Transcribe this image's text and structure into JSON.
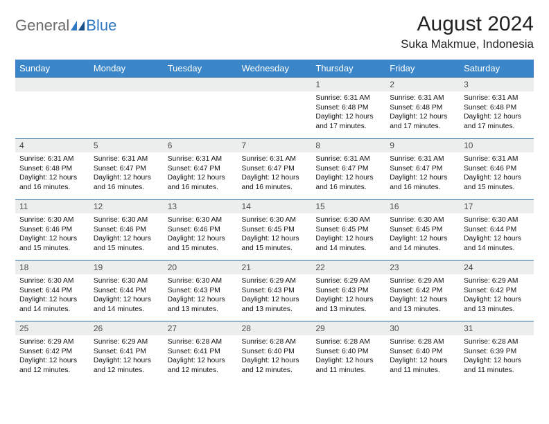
{
  "brand": {
    "part1": "General",
    "part2": "Blue"
  },
  "title": "August 2024",
  "location": "Suka Makmue, Indonesia",
  "colors": {
    "header_bg": "#3a86c8",
    "header_text": "#ffffff",
    "daynum_bg": "#eceded",
    "row_border": "#2d6aa3",
    "logo_gray": "#6a6a6a",
    "logo_blue": "#2f78c2"
  },
  "fonts": {
    "title_size_pt": 22,
    "location_size_pt": 13,
    "header_size_pt": 10,
    "body_size_pt": 8
  },
  "weekdays": [
    "Sunday",
    "Monday",
    "Tuesday",
    "Wednesday",
    "Thursday",
    "Friday",
    "Saturday"
  ],
  "weeks": [
    [
      null,
      null,
      null,
      null,
      {
        "n": "1",
        "sr": "6:31 AM",
        "ss": "6:48 PM",
        "dl": "12 hours and 17 minutes."
      },
      {
        "n": "2",
        "sr": "6:31 AM",
        "ss": "6:48 PM",
        "dl": "12 hours and 17 minutes."
      },
      {
        "n": "3",
        "sr": "6:31 AM",
        "ss": "6:48 PM",
        "dl": "12 hours and 17 minutes."
      }
    ],
    [
      {
        "n": "4",
        "sr": "6:31 AM",
        "ss": "6:48 PM",
        "dl": "12 hours and 16 minutes."
      },
      {
        "n": "5",
        "sr": "6:31 AM",
        "ss": "6:47 PM",
        "dl": "12 hours and 16 minutes."
      },
      {
        "n": "6",
        "sr": "6:31 AM",
        "ss": "6:47 PM",
        "dl": "12 hours and 16 minutes."
      },
      {
        "n": "7",
        "sr": "6:31 AM",
        "ss": "6:47 PM",
        "dl": "12 hours and 16 minutes."
      },
      {
        "n": "8",
        "sr": "6:31 AM",
        "ss": "6:47 PM",
        "dl": "12 hours and 16 minutes."
      },
      {
        "n": "9",
        "sr": "6:31 AM",
        "ss": "6:47 PM",
        "dl": "12 hours and 16 minutes."
      },
      {
        "n": "10",
        "sr": "6:31 AM",
        "ss": "6:46 PM",
        "dl": "12 hours and 15 minutes."
      }
    ],
    [
      {
        "n": "11",
        "sr": "6:30 AM",
        "ss": "6:46 PM",
        "dl": "12 hours and 15 minutes."
      },
      {
        "n": "12",
        "sr": "6:30 AM",
        "ss": "6:46 PM",
        "dl": "12 hours and 15 minutes."
      },
      {
        "n": "13",
        "sr": "6:30 AM",
        "ss": "6:46 PM",
        "dl": "12 hours and 15 minutes."
      },
      {
        "n": "14",
        "sr": "6:30 AM",
        "ss": "6:45 PM",
        "dl": "12 hours and 15 minutes."
      },
      {
        "n": "15",
        "sr": "6:30 AM",
        "ss": "6:45 PM",
        "dl": "12 hours and 14 minutes."
      },
      {
        "n": "16",
        "sr": "6:30 AM",
        "ss": "6:45 PM",
        "dl": "12 hours and 14 minutes."
      },
      {
        "n": "17",
        "sr": "6:30 AM",
        "ss": "6:44 PM",
        "dl": "12 hours and 14 minutes."
      }
    ],
    [
      {
        "n": "18",
        "sr": "6:30 AM",
        "ss": "6:44 PM",
        "dl": "12 hours and 14 minutes."
      },
      {
        "n": "19",
        "sr": "6:30 AM",
        "ss": "6:44 PM",
        "dl": "12 hours and 14 minutes."
      },
      {
        "n": "20",
        "sr": "6:30 AM",
        "ss": "6:43 PM",
        "dl": "12 hours and 13 minutes."
      },
      {
        "n": "21",
        "sr": "6:29 AM",
        "ss": "6:43 PM",
        "dl": "12 hours and 13 minutes."
      },
      {
        "n": "22",
        "sr": "6:29 AM",
        "ss": "6:43 PM",
        "dl": "12 hours and 13 minutes."
      },
      {
        "n": "23",
        "sr": "6:29 AM",
        "ss": "6:42 PM",
        "dl": "12 hours and 13 minutes."
      },
      {
        "n": "24",
        "sr": "6:29 AM",
        "ss": "6:42 PM",
        "dl": "12 hours and 13 minutes."
      }
    ],
    [
      {
        "n": "25",
        "sr": "6:29 AM",
        "ss": "6:42 PM",
        "dl": "12 hours and 12 minutes."
      },
      {
        "n": "26",
        "sr": "6:29 AM",
        "ss": "6:41 PM",
        "dl": "12 hours and 12 minutes."
      },
      {
        "n": "27",
        "sr": "6:28 AM",
        "ss": "6:41 PM",
        "dl": "12 hours and 12 minutes."
      },
      {
        "n": "28",
        "sr": "6:28 AM",
        "ss": "6:40 PM",
        "dl": "12 hours and 12 minutes."
      },
      {
        "n": "29",
        "sr": "6:28 AM",
        "ss": "6:40 PM",
        "dl": "12 hours and 11 minutes."
      },
      {
        "n": "30",
        "sr": "6:28 AM",
        "ss": "6:40 PM",
        "dl": "12 hours and 11 minutes."
      },
      {
        "n": "31",
        "sr": "6:28 AM",
        "ss": "6:39 PM",
        "dl": "12 hours and 11 minutes."
      }
    ]
  ],
  "labels": {
    "sunrise_prefix": "Sunrise: ",
    "sunset_prefix": "Sunset: ",
    "daylight_prefix": "Daylight: "
  }
}
